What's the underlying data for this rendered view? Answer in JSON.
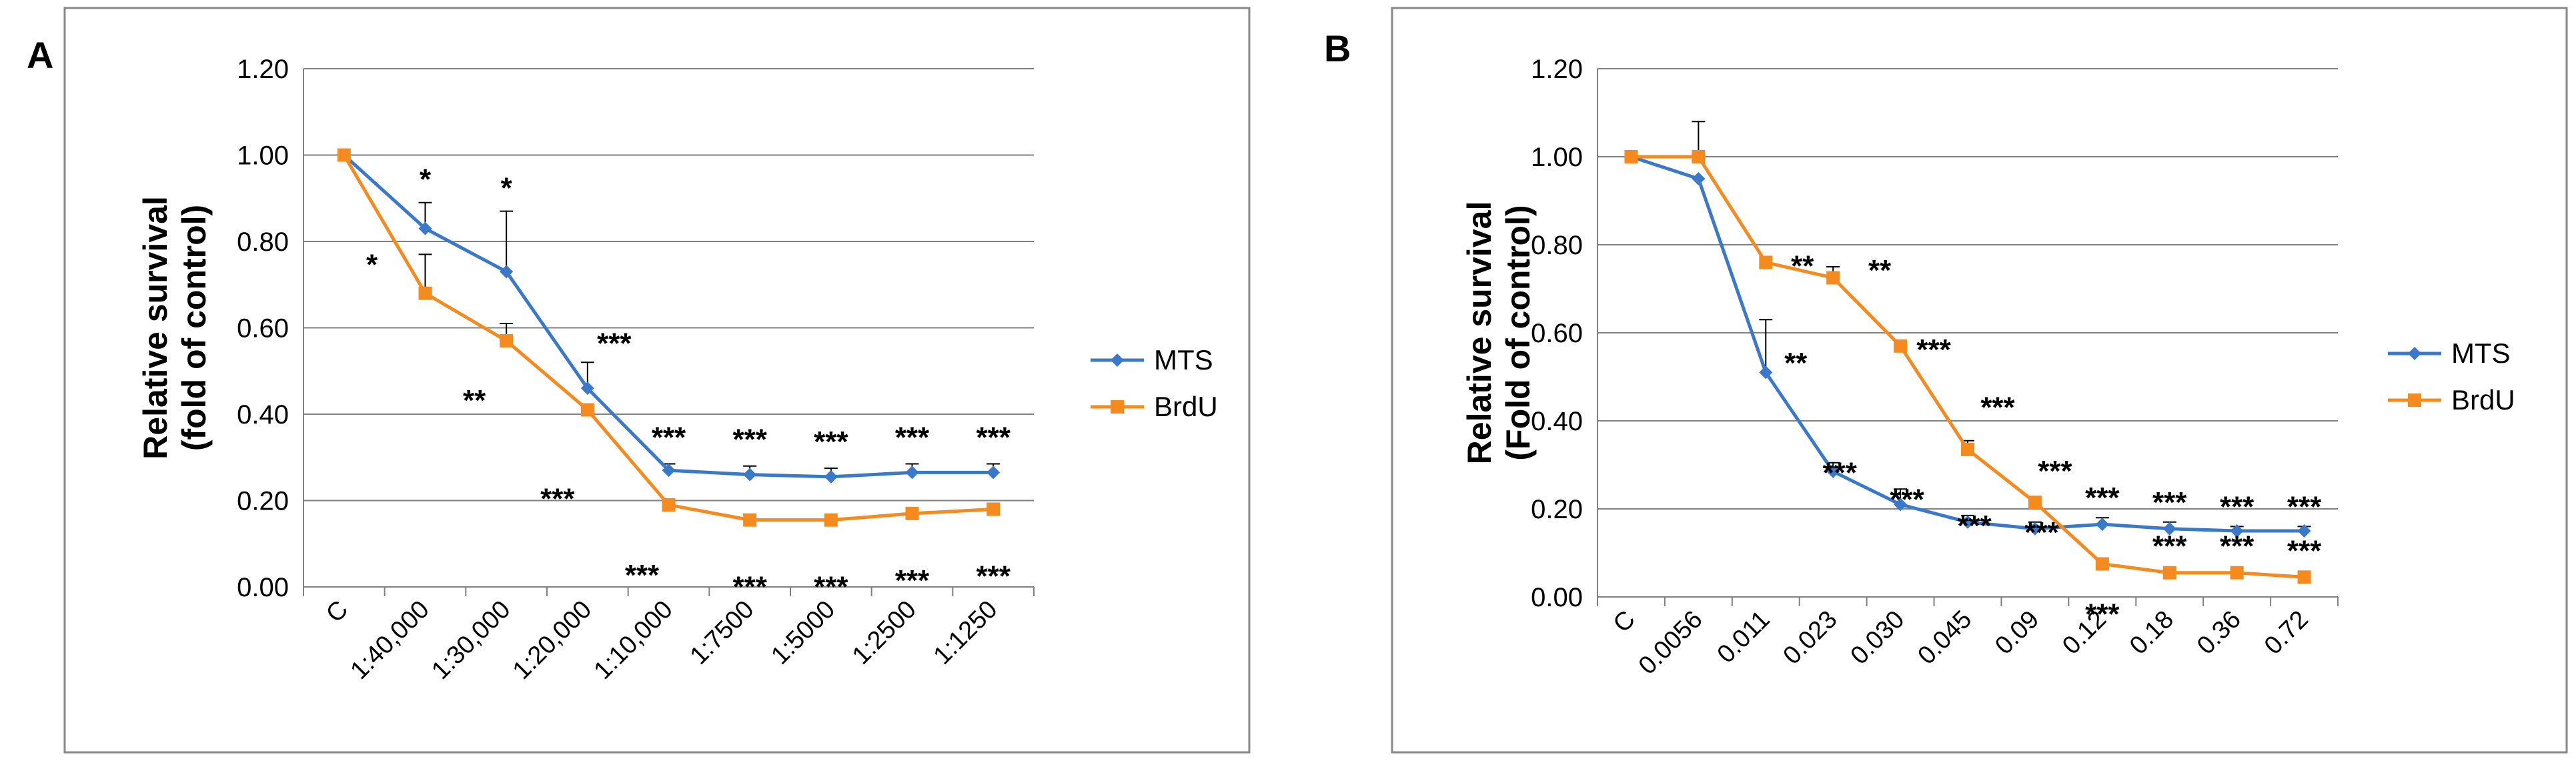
{
  "colors": {
    "mts": "#3A78C9",
    "brdu": "#F58A1F",
    "grid": "#808080",
    "frame": "#888888",
    "text": "#000000"
  },
  "panels": [
    {
      "label": "A"
    },
    {
      "label": "B"
    }
  ],
  "chart_data": [
    {
      "type": "line",
      "panel": "A",
      "title": "",
      "xlabel": "",
      "ylabel": "Relative survival\n(fold of control)",
      "ylim": [
        0,
        1.2
      ],
      "yticks": [
        "0.00",
        "0.20",
        "0.40",
        "0.60",
        "0.80",
        "1.00",
        "1.20"
      ],
      "grid": true,
      "legend": "right",
      "categories": [
        "C",
        "1:40,000",
        "1:30,000",
        "1:20,000",
        "1:10,000",
        "1:7500",
        "1:5000",
        "1:2500",
        "1:1250"
      ],
      "series": [
        {
          "name": "MTS",
          "values": [
            1.0,
            0.83,
            0.73,
            0.46,
            0.27,
            0.26,
            0.255,
            0.265,
            0.265
          ],
          "errors": [
            0,
            0.06,
            0.14,
            0.06,
            0.015,
            0.02,
            0.02,
            0.02,
            0.02
          ],
          "annotations": [
            "",
            "*",
            "*",
            "***",
            "***",
            "***",
            "***",
            "***",
            "***"
          ]
        },
        {
          "name": "BrdU",
          "values": [
            1.0,
            0.68,
            0.57,
            0.41,
            0.19,
            0.155,
            0.155,
            0.17,
            0.18
          ],
          "errors": [
            0,
            0.09,
            0.04,
            0,
            0,
            0,
            0,
            0,
            0
          ],
          "annotations": [
            "",
            "*",
            "**",
            "***",
            "***",
            "***",
            "***",
            "***",
            "***"
          ]
        }
      ]
    },
    {
      "type": "line",
      "panel": "B",
      "title": "",
      "xlabel": "",
      "ylabel": "Relative survival\n(Fold of control)",
      "ylim": [
        0,
        1.2
      ],
      "yticks": [
        "0.00",
        "0.20",
        "0.40",
        "0.60",
        "0.80",
        "1.00",
        "1.20"
      ],
      "grid": true,
      "legend": "right",
      "categories": [
        "C",
        "0.0056",
        "0.011",
        "0.023",
        "0.030",
        "0.045",
        "0.09",
        "0.12",
        "0.18",
        "0.36",
        "0.72"
      ],
      "series": [
        {
          "name": "MTS",
          "values": [
            1.0,
            0.95,
            0.51,
            0.285,
            0.21,
            0.17,
            0.155,
            0.165,
            0.155,
            0.15,
            0.15
          ],
          "errors": [
            0,
            0,
            0.12,
            0.02,
            0.035,
            0.015,
            0.015,
            0.015,
            0.015,
            0.01,
            0.01
          ],
          "annotations": [
            "",
            "",
            "**",
            "***",
            "***",
            "***",
            "***",
            "***",
            "***",
            "***",
            "***"
          ]
        },
        {
          "name": "BrdU",
          "values": [
            1.0,
            1.0,
            0.76,
            0.725,
            0.57,
            0.335,
            0.215,
            0.075,
            0.055,
            0.055,
            0.045
          ],
          "errors": [
            0,
            0.08,
            0,
            0.025,
            0,
            0.02,
            0,
            0,
            0,
            0,
            0
          ],
          "annotations": [
            "",
            "",
            "**",
            "**",
            "***",
            "***",
            "***",
            "***",
            "***",
            "***",
            "***"
          ]
        }
      ]
    }
  ]
}
